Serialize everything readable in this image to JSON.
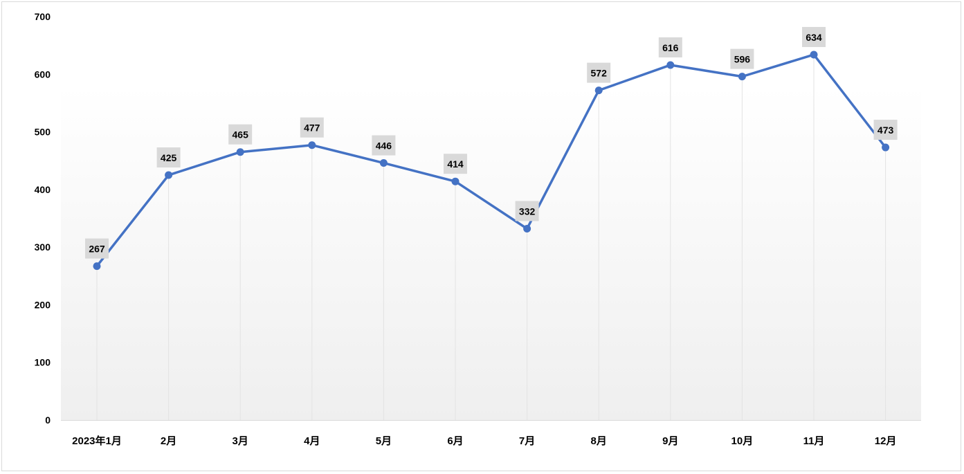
{
  "chart_data": {
    "type": "line",
    "title": "",
    "xlabel": "",
    "ylabel": "",
    "categories": [
      "2023年1月",
      "2月",
      "3月",
      "4月",
      "5月",
      "6月",
      "7月",
      "8月",
      "9月",
      "10月",
      "11月",
      "12月"
    ],
    "series": [
      {
        "values": [
          267,
          425,
          465,
          477,
          446,
          414,
          332,
          572,
          616,
          596,
          634,
          473
        ],
        "color": "#4472c4"
      }
    ],
    "ylim": [
      0,
      700
    ],
    "yticks": [
      0,
      100,
      200,
      300,
      400,
      500,
      600,
      700
    ],
    "ytick_labels": [
      "0",
      "100",
      "200",
      "300",
      "400",
      "500",
      "600",
      "700"
    ],
    "data_labels": true,
    "data_label_background": "#d9d9d9",
    "vertical_drop_lines": true,
    "legend": "none",
    "plot_background": "gradient white to light gray"
  }
}
